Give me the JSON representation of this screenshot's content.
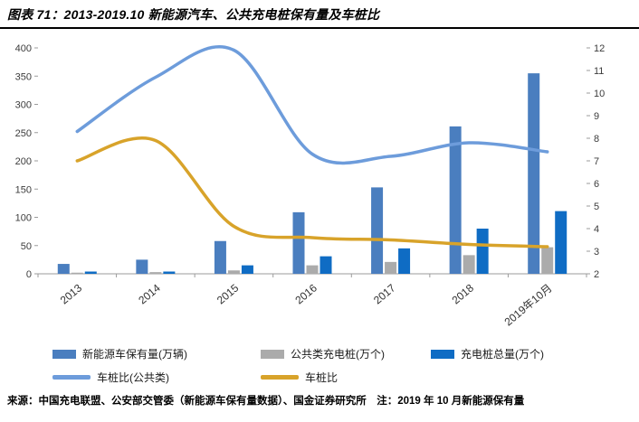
{
  "header": {
    "title": "图表 71：2013-2019.10 新能源汽车、公共充电桩保有量及车桩比"
  },
  "footer": {
    "source": "来源：中国充电联盟、公安部交管委（新能源车保有量数据）、国金证券研究所　注：2019 年 10 月新能源保有量"
  },
  "colors": {
    "nev_bar": "#4A7EBF",
    "public_pile_bar": "#ABABAB",
    "total_pile_bar": "#0F6CC4",
    "public_ratio_line": "#6D9CDB",
    "ratio_line": "#D8A32A",
    "axis": "#9b9b9b",
    "title_rule": "#000000"
  },
  "chart_data": {
    "type": "bar",
    "subtype": "bar-line combo, dual axis",
    "title": "2013-2019.10 新能源汽车、公共充电桩保有量及车桩比",
    "categories": [
      "2013",
      "2014",
      "2015",
      "2016",
      "2017",
      "2018",
      "2019年10月"
    ],
    "series": [
      {
        "name": "新能源车保有量(万辆)",
        "axis": "left",
        "color": "#4A7EBF",
        "values": [
          17.5,
          25,
          58,
          109,
          153,
          261,
          355
        ]
      },
      {
        "name": "公共类充电桩(万个)",
        "axis": "left",
        "color": "#ABABAB",
        "values": [
          2,
          3,
          6,
          15,
          21,
          33,
          47
        ]
      },
      {
        "name": "充电桩总量(万个)",
        "axis": "left",
        "color": "#0F6CC4",
        "values": [
          4,
          4,
          15,
          31,
          45,
          80,
          111
        ]
      }
    ],
    "lines": [
      {
        "name": "车桩比(公共类)",
        "axis": "right",
        "color": "#6D9CDB",
        "values": [
          8.3,
          10.7,
          11.9,
          7.3,
          7.2,
          7.8,
          7.4
        ]
      },
      {
        "name": "车桩比",
        "axis": "right",
        "color": "#D8A32A",
        "values": [
          7.0,
          7.9,
          4.1,
          3.6,
          3.5,
          3.3,
          3.2
        ]
      }
    ],
    "left_axis": {
      "min": 0,
      "max": 400,
      "step": 50,
      "ticks": [
        0,
        50,
        100,
        150,
        200,
        250,
        300,
        350,
        400
      ]
    },
    "right_axis": {
      "min": 2,
      "max": 12,
      "step": 1,
      "ticks": [
        2,
        3,
        4,
        5,
        6,
        7,
        8,
        9,
        10,
        11,
        12
      ]
    },
    "grid": false,
    "legend_position": "bottom"
  }
}
